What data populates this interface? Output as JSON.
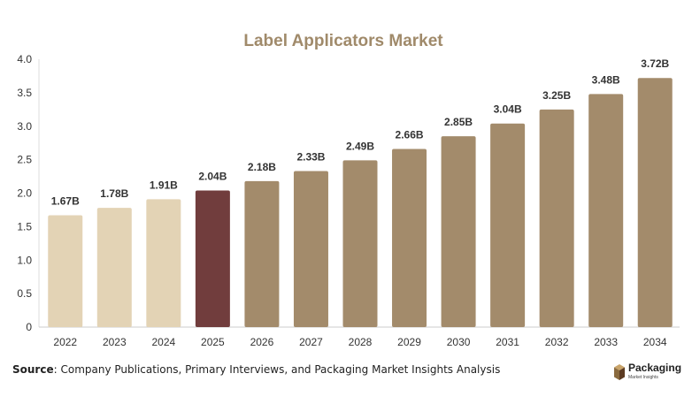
{
  "chart_data": {
    "type": "bar",
    "title": "Label Applicators Market",
    "categories": [
      "2022",
      "2023",
      "2024",
      "2025",
      "2026",
      "2027",
      "2028",
      "2029",
      "2030",
      "2031",
      "2032",
      "2033",
      "2034"
    ],
    "values": [
      1.67,
      1.78,
      1.91,
      2.04,
      2.18,
      2.33,
      2.49,
      2.66,
      2.85,
      3.04,
      3.25,
      3.48,
      3.72
    ],
    "data_labels": [
      "1.67B",
      "1.78B",
      "1.91B",
      "2.04B",
      "2.18B",
      "2.33B",
      "2.49B",
      "2.66B",
      "2.85B",
      "3.04B",
      "3.25B",
      "3.48B",
      "3.72B"
    ],
    "bar_colors": [
      "#e3d3b5",
      "#e3d3b5",
      "#e3d3b5",
      "#713d3d",
      "#a38b6b",
      "#a38b6b",
      "#a38b6b",
      "#a38b6b",
      "#a38b6b",
      "#a38b6b",
      "#a38b6b",
      "#a38b6b",
      "#a38b6b"
    ],
    "ylim": [
      0,
      4.0
    ],
    "yticks": [
      "0",
      "0.5",
      "1.0",
      "1.5",
      "2.0",
      "2.5",
      "3.0",
      "3.5",
      "4.0"
    ],
    "xlabel": "",
    "ylabel": "",
    "grid": false,
    "legend": "none"
  },
  "colors": {
    "title": "#a08a6a",
    "historical": "#e3d3b5",
    "current": "#713d3d",
    "forecast": "#a38b6b"
  },
  "footer": {
    "source_label": "Source",
    "source_text": ": Company Publications, Primary Interviews, and Packaging Market Insights Analysis"
  },
  "logo": {
    "name": "Packaging",
    "tagline": "Market Insights",
    "icon": "box-icon"
  }
}
